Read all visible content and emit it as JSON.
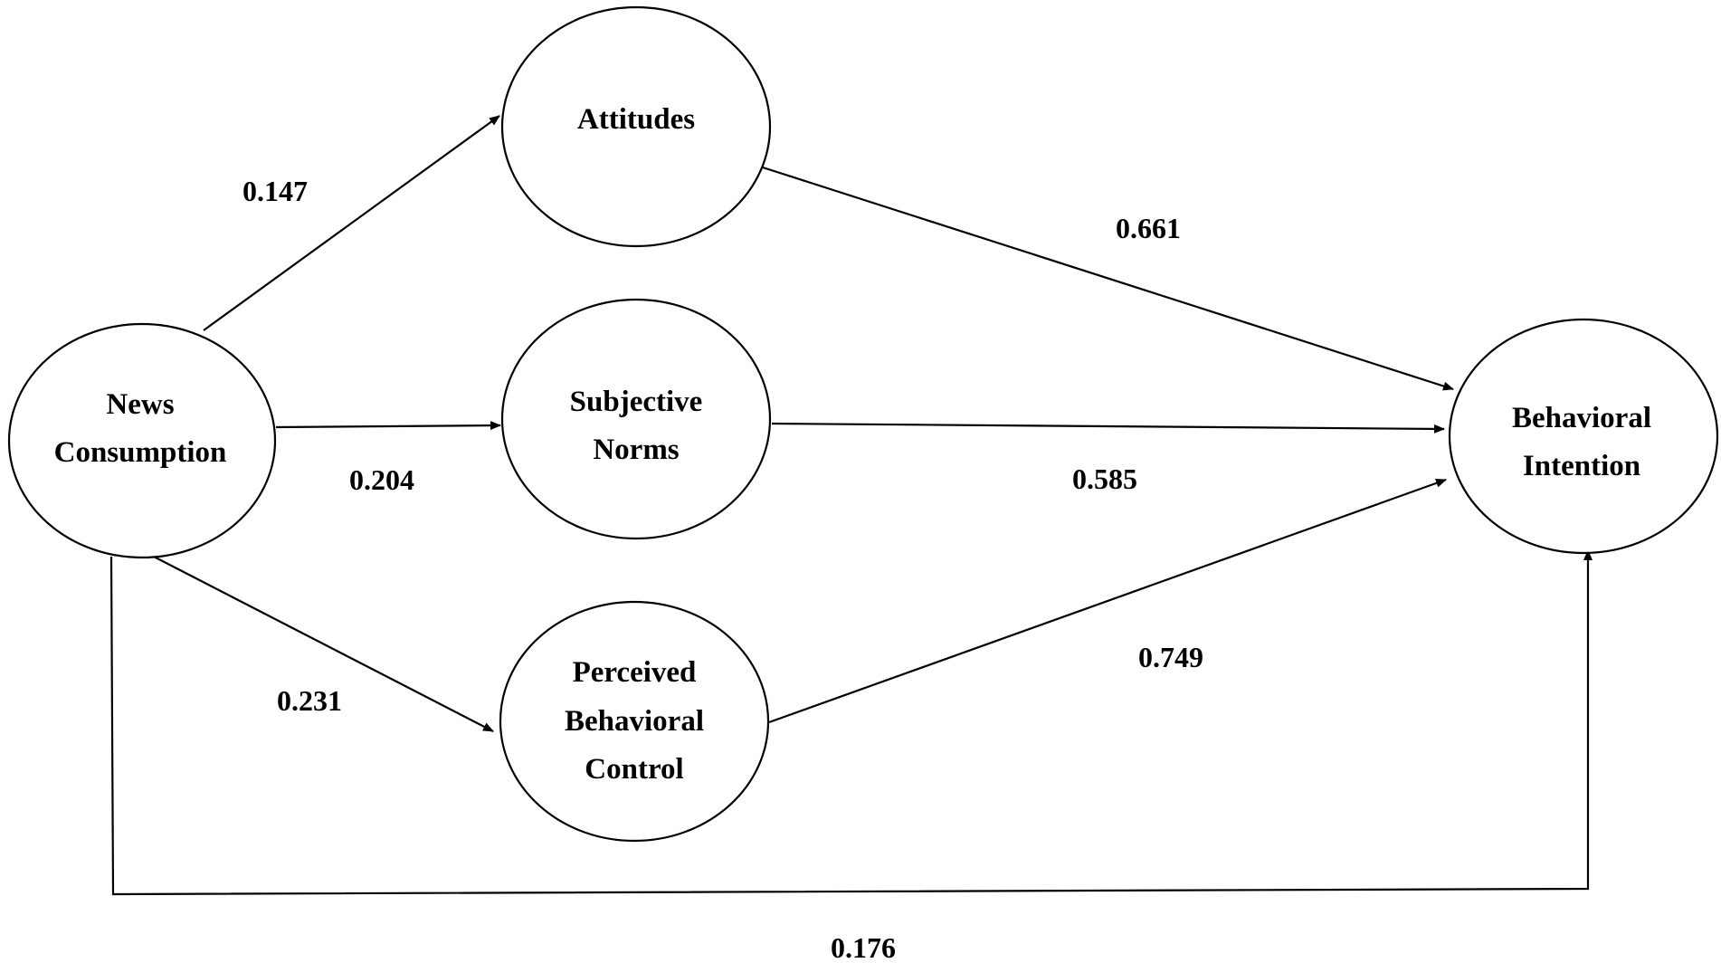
{
  "nodes": {
    "news_consumption": {
      "line1": "News",
      "line2": "Consumption"
    },
    "attitudes": {
      "line1": "Attitudes"
    },
    "subjective_norms": {
      "line1": "Subjective",
      "line2": "Norms"
    },
    "perceived_behavioral_control": {
      "line1": "Perceived",
      "line2": "Behavioral",
      "line3": "Control"
    },
    "behavioral_intention": {
      "line1": "Behavioral",
      "line2": "Intention"
    }
  },
  "paths": {
    "news_to_attitudes": {
      "from": "News Consumption",
      "to": "Attitudes",
      "coefficient": "0.147"
    },
    "news_to_norms": {
      "from": "News Consumption",
      "to": "Subjective Norms",
      "coefficient": "0.204"
    },
    "news_to_pbc": {
      "from": "News Consumption",
      "to": "Perceived Behavioral Control",
      "coefficient": "0.231"
    },
    "attitudes_to_intention": {
      "from": "Attitudes",
      "to": "Behavioral Intention",
      "coefficient": "0.661"
    },
    "norms_to_intention": {
      "from": "Subjective Norms",
      "to": "Behavioral Intention",
      "coefficient": "0.585"
    },
    "pbc_to_intention": {
      "from": "Perceived Behavioral Control",
      "to": "Behavioral Intention",
      "coefficient": "0.749"
    },
    "news_to_intention": {
      "from": "News Consumption",
      "to": "Behavioral Intention",
      "coefficient": "0.176"
    }
  }
}
